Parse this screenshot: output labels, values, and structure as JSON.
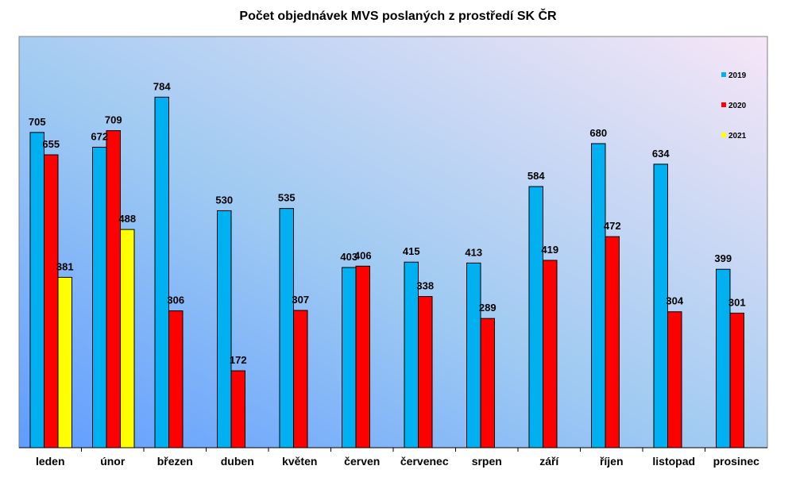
{
  "chart_data": {
    "type": "bar",
    "title": "Počet objednávek MVS poslaných z prostředí SK ČR",
    "categories": [
      "leden",
      "únor",
      "březen",
      "duben",
      "květen",
      "červen",
      "červenec",
      "srpen",
      "září",
      "říjen",
      "listopad",
      "prosinec"
    ],
    "series": [
      {
        "name": "2019",
        "color": "#00B0F0",
        "values": [
          705,
          672,
          784,
          530,
          535,
          403,
          415,
          413,
          584,
          680,
          634,
          399
        ]
      },
      {
        "name": "2020",
        "color": "#FF0000",
        "values": [
          655,
          709,
          306,
          172,
          307,
          406,
          338,
          289,
          419,
          472,
          304,
          301
        ]
      },
      {
        "name": "2021",
        "color": "#FFFF00",
        "values": [
          381,
          488,
          null,
          null,
          null,
          null,
          null,
          null,
          null,
          null,
          null,
          null
        ]
      }
    ],
    "ylim": [
      0,
      800
    ],
    "grid": false,
    "legend_position": "right"
  }
}
